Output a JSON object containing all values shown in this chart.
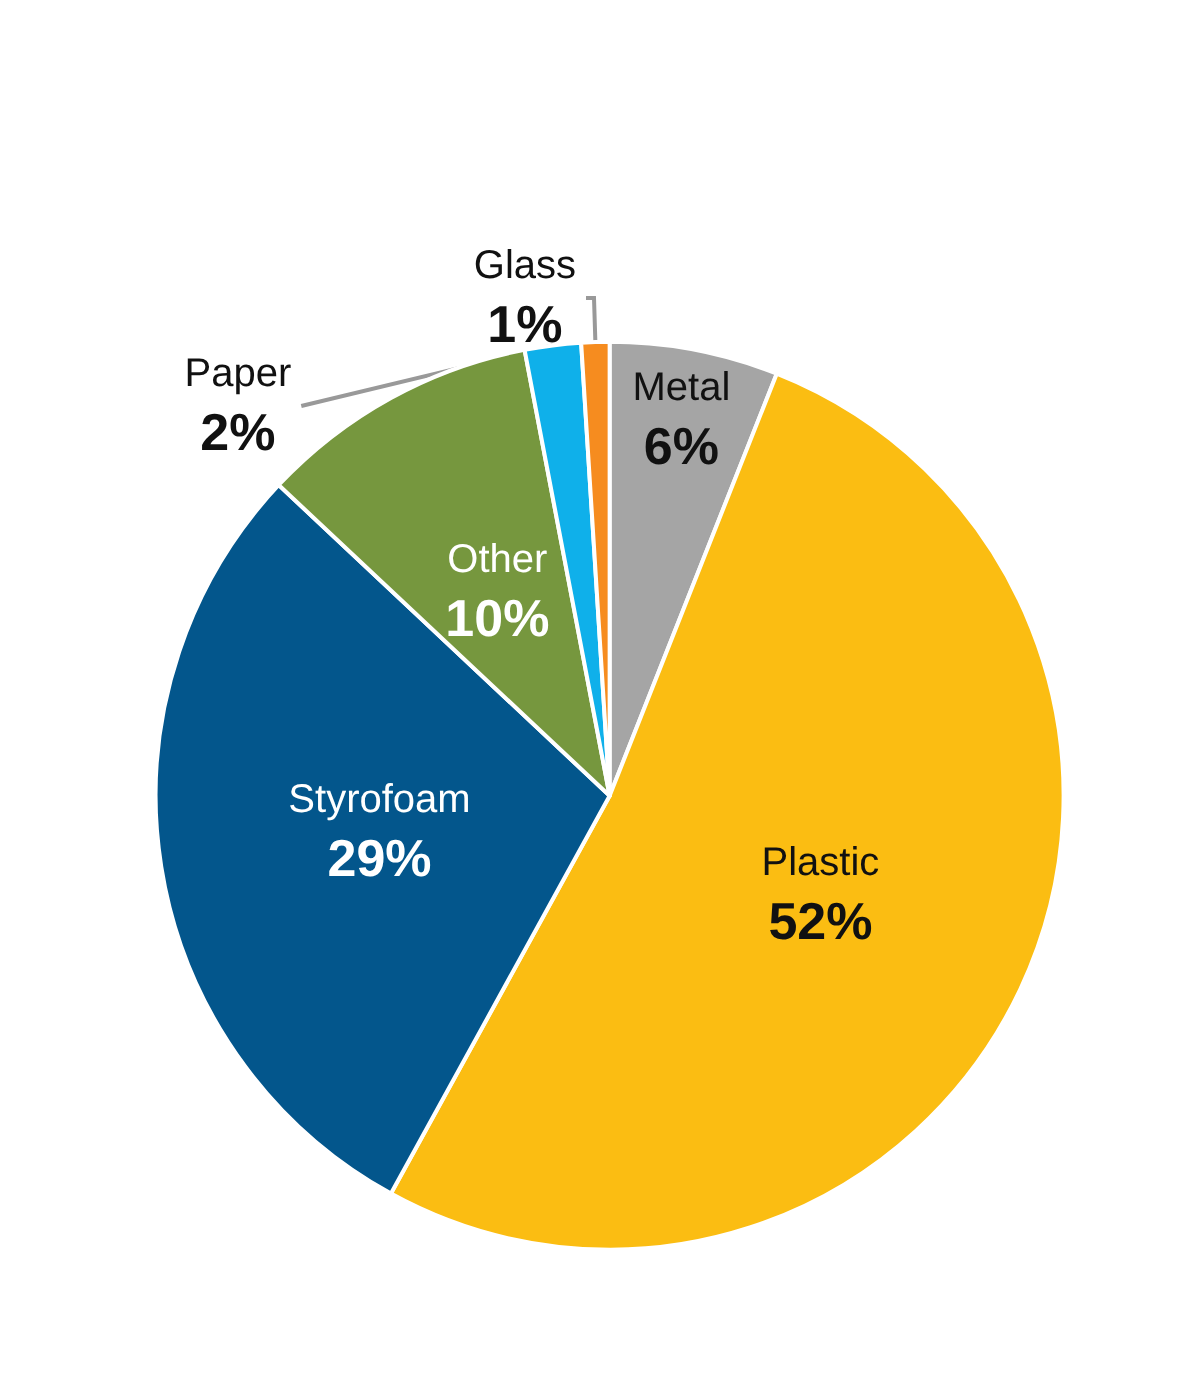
{
  "chart_data": {
    "type": "pie",
    "categories": [
      "Metal",
      "Plastic",
      "Styrofoam",
      "Other",
      "Paper",
      "Glass"
    ],
    "values": [
      6,
      52,
      29,
      10,
      2,
      1
    ],
    "value_labels": [
      "6%",
      "52%",
      "29%",
      "10%",
      "2%",
      "1%"
    ],
    "colors": [
      "#a5a5a5",
      "#fbbd12",
      "#03568c",
      "#76973e",
      "#0fb0ea",
      "#f68c1f"
    ],
    "legend": false
  }
}
